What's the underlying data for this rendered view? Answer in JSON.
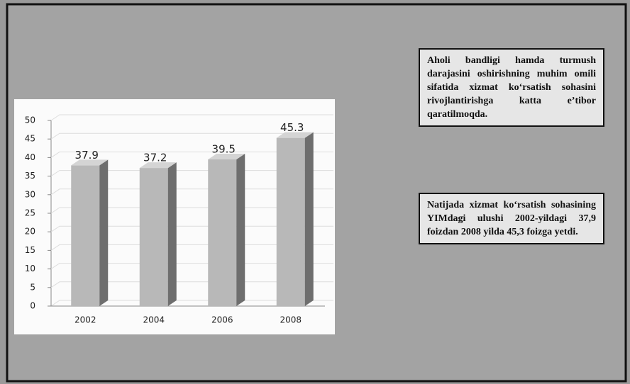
{
  "chart_data": {
    "type": "bar3d",
    "categories": [
      "2002",
      "2004",
      "2006",
      "2008"
    ],
    "values": [
      37.9,
      37.2,
      39.5,
      45.3
    ],
    "color": "#b8b8b8",
    "ylim": [
      0,
      50
    ],
    "yticks": [
      0,
      5,
      10,
      15,
      20,
      25,
      30,
      35,
      40,
      45,
      50
    ],
    "grid": true,
    "annotations": [
      "Aholi bandligi hamda turmush darajasini oshirishning muhim omili sifatida xizmat ko‘rsatish sohasini rivojlantirishga katta e’tibor qaratilmoqda.",
      "Natijada xizmat ko‘rsatish sohasining YIMdagi ulushi 2002-yildagi 37,9 foizdan 2008 yilda 45,3 foizga yetdi."
    ]
  }
}
